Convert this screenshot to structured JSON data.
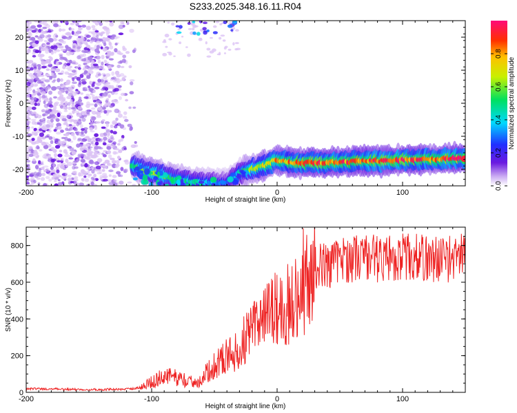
{
  "title": "S233.2025.348.16.11.R04",
  "colors": {
    "trace": "#ee2222",
    "speckle_light": "#dcc3f5",
    "speckle_mid": "#a77ce8",
    "speckle_dark": "#6a19e0"
  },
  "chart_data": [
    {
      "type": "heatmap",
      "xlabel": "Height of straight line (km)",
      "ylabel": "Frequency (Hz)",
      "xlim": [
        -200,
        150
      ],
      "ylim": [
        -25,
        25
      ],
      "xticks": [
        -200,
        -100,
        0,
        100
      ],
      "yticks": [
        -20,
        -10,
        0,
        10,
        20
      ],
      "xtick_labels": [
        "-200",
        "-100",
        "0",
        "100"
      ],
      "ytick_labels": [
        "-20",
        "-10",
        "0",
        "10",
        "20"
      ],
      "colorbar": {
        "label": "Normalized spectral amplitude",
        "range": [
          0,
          1
        ],
        "ticks": [
          "0.0",
          "0.2",
          "0.4",
          "0.6",
          "0.8"
        ],
        "colormap": "rainbow (violet-blue-cyan-green-yellow-red-magenta)"
      },
      "ridge": {
        "description": "strong spectral line near -17 Hz",
        "points": [
          {
            "x": -115,
            "y": -19,
            "amp": 0.5
          },
          {
            "x": -100,
            "y": -21,
            "amp": 0.6
          },
          {
            "x": -80,
            "y": -23,
            "amp": 0.5
          },
          {
            "x": -60,
            "y": -24,
            "amp": 0.4
          },
          {
            "x": -40,
            "y": -24,
            "amp": 0.3
          },
          {
            "x": -30,
            "y": -21,
            "amp": 0.4
          },
          {
            "x": -20,
            "y": -20,
            "amp": 0.6
          },
          {
            "x": -10,
            "y": -19,
            "amp": 0.7
          },
          {
            "x": 0,
            "y": -17,
            "amp": 0.8
          },
          {
            "x": 10,
            "y": -18,
            "amp": 0.8
          },
          {
            "x": 25,
            "y": -18,
            "amp": 0.9
          },
          {
            "x": 50,
            "y": -17.8,
            "amp": 0.85
          },
          {
            "x": 75,
            "y": -17.5,
            "amp": 0.9
          },
          {
            "x": 100,
            "y": -17.2,
            "amp": 0.9
          },
          {
            "x": 125,
            "y": -17,
            "amp": 0.85
          },
          {
            "x": 150,
            "y": -16.5,
            "amp": 0.95
          }
        ]
      },
      "noise_region": {
        "x_range": [
          -200,
          -110
        ],
        "y_range": [
          -25,
          25
        ],
        "amp": 0.2
      }
    },
    {
      "type": "line",
      "xlabel": "Height of straight line (km)",
      "ylabel": "SNR (10 * v/v)",
      "xlim": [
        -200,
        150
      ],
      "ylim": [
        0,
        900
      ],
      "xticks": [
        -200,
        -100,
        0,
        100
      ],
      "yticks": [
        0,
        200,
        400,
        600,
        800
      ],
      "xtick_labels": [
        "-200",
        "-100",
        "0",
        "100"
      ],
      "ytick_labels": [
        "0",
        "200",
        "400",
        "600",
        "800"
      ],
      "series": [
        {
          "name": "SNR",
          "x": [
            -200,
            -180,
            -160,
            -140,
            -120,
            -110,
            -100,
            -90,
            -80,
            -70,
            -60,
            -50,
            -40,
            -30,
            -20,
            -10,
            0,
            10,
            20,
            30,
            40,
            50,
            60,
            70,
            80,
            90,
            100,
            110,
            120,
            130,
            140,
            150
          ],
          "values": [
            20,
            18,
            16,
            15,
            17,
            25,
            55,
            90,
            80,
            55,
            70,
            150,
            200,
            230,
            340,
            420,
            450,
            480,
            560,
            680,
            700,
            720,
            730,
            740,
            730,
            735,
            740,
            735,
            730,
            728,
            730,
            735
          ]
        }
      ]
    }
  ]
}
